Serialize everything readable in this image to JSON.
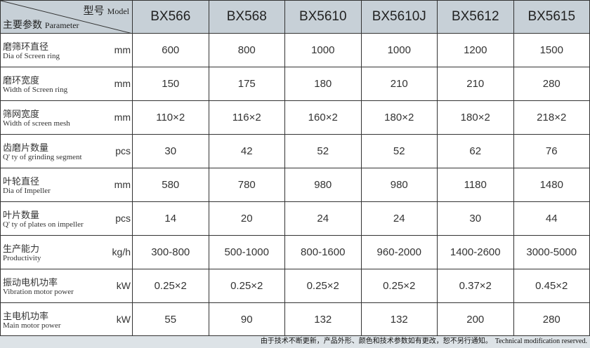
{
  "header": {
    "model_cn": "型号",
    "model_en": "Model",
    "param_cn": "主要参数",
    "param_en": "Parameter",
    "models": [
      "BX566",
      "BX568",
      "BX5610",
      "BX5610J",
      "BX5612",
      "BX5615"
    ]
  },
  "rows": [
    {
      "cn": "磨筛环直径",
      "en": "Dia of Screen ring",
      "unit": "mm",
      "values": [
        "600",
        "800",
        "1000",
        "1000",
        "1200",
        "1500"
      ]
    },
    {
      "cn": "磨环宽度",
      "en": "Width of Screen ring",
      "unit": "mm",
      "values": [
        "150",
        "175",
        "180",
        "210",
        "210",
        "280"
      ]
    },
    {
      "cn": "筛网宽度",
      "en": "Width of screen mesh",
      "unit": "mm",
      "values": [
        "110×2",
        "116×2",
        "160×2",
        "180×2",
        "180×2",
        "218×2"
      ]
    },
    {
      "cn": "齿磨片数量",
      "en": "Q' ty of grinding segment",
      "unit": "pcs",
      "values": [
        "30",
        "42",
        "52",
        "52",
        "62",
        "76"
      ]
    },
    {
      "cn": "叶轮直径",
      "en": "Dia of Impeller",
      "unit": "mm",
      "values": [
        "580",
        "780",
        "980",
        "980",
        "1180",
        "1480"
      ]
    },
    {
      "cn": "叶片数量",
      "en": "Q' ty of plates on impeller",
      "unit": "pcs",
      "values": [
        "14",
        "20",
        "24",
        "24",
        "30",
        "44"
      ]
    },
    {
      "cn": "生产能力",
      "en": "Productivity",
      "unit": "kg/h",
      "values": [
        "300-800",
        "500-1000",
        "800-1600",
        "960-2000",
        "1400-2600",
        "3000-5000"
      ]
    },
    {
      "cn": "振动电机功率",
      "en": "Vibration motor power",
      "unit": "kW",
      "values": [
        "0.25×2",
        "0.25×2",
        "0.25×2",
        "0.25×2",
        "0.37×2",
        "0.45×2"
      ]
    },
    {
      "cn": "主电机功率",
      "en": "Main motor power",
      "unit": "kW",
      "values": [
        "55",
        "90",
        "132",
        "132",
        "200",
        "280"
      ]
    }
  ],
  "footer": {
    "cn": "由于技术不断更新，产品外形、颜色和技术参数如有更改，恕不另行通知。",
    "en": "Technical modification reserved."
  }
}
